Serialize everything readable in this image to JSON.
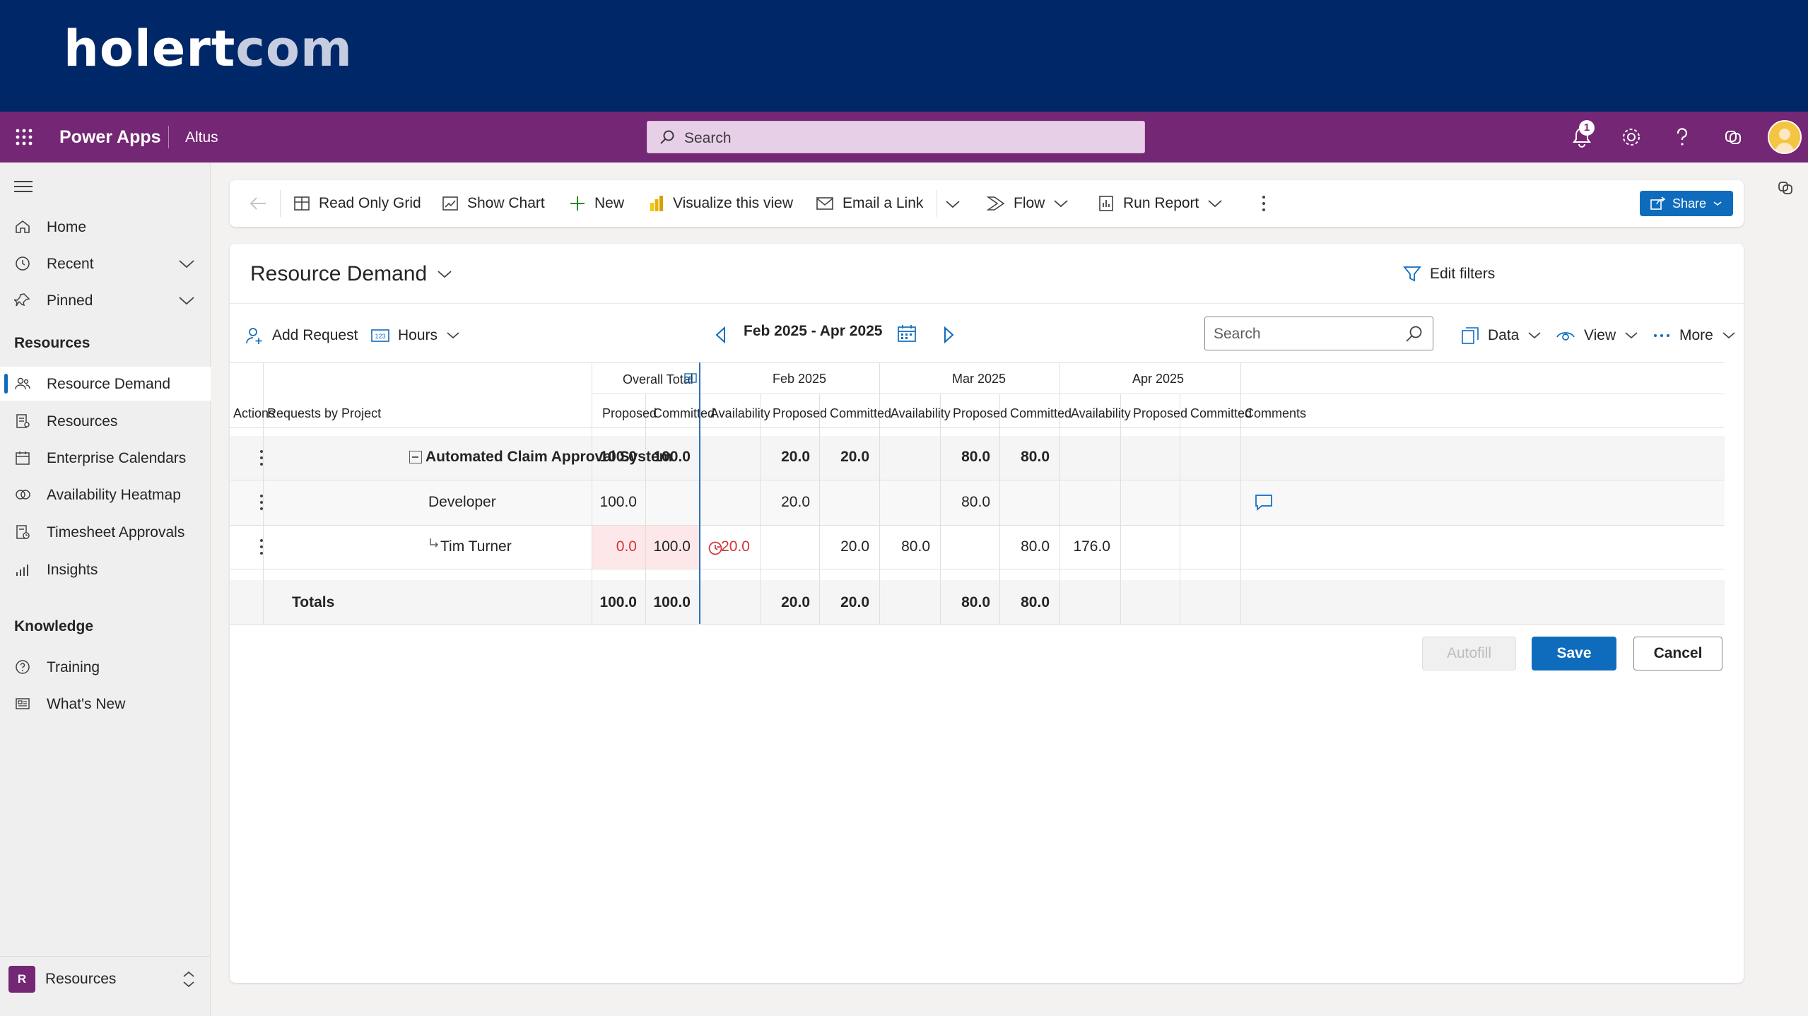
{
  "brand": {
    "logo_a": "holert",
    "logo_b": "com"
  },
  "appbar": {
    "app_name": "Power Apps",
    "environment": "Altus",
    "search_placeholder": "Search",
    "notification_count": "1",
    "accent": "#742774"
  },
  "sidebar": {
    "items_top": [
      {
        "label": "Home",
        "icon": "home-icon"
      },
      {
        "label": "Recent",
        "icon": "clock-icon"
      },
      {
        "label": "Pinned",
        "icon": "pin-icon"
      }
    ],
    "group_resources": "Resources",
    "items_resources": [
      {
        "label": "Resource Demand",
        "icon": "people-icon",
        "active": true
      },
      {
        "label": "Resources",
        "icon": "resource-list-icon"
      },
      {
        "label": "Enterprise Calendars",
        "icon": "calendar-icon"
      },
      {
        "label": "Availability Heatmap",
        "icon": "heatmap-icon"
      },
      {
        "label": "Timesheet Approvals",
        "icon": "timesheet-icon"
      },
      {
        "label": "Insights",
        "icon": "chart-icon"
      }
    ],
    "group_knowledge": "Knowledge",
    "items_knowledge": [
      {
        "label": "Training",
        "icon": "help-circle-icon"
      },
      {
        "label": "What's New",
        "icon": "news-icon"
      }
    ],
    "area_switcher": {
      "initial": "R",
      "label": "Resources"
    }
  },
  "commandbar": {
    "read_only_grid": "Read Only Grid",
    "show_chart": "Show Chart",
    "new": "New",
    "visualize": "Visualize this view",
    "email_link": "Email a Link",
    "flow": "Flow",
    "run_report": "Run Report",
    "share": "Share"
  },
  "view": {
    "title": "Resource Demand",
    "edit_filters": "Edit filters",
    "add_request": "Add Request",
    "unit": "Hours",
    "date_range": "Feb 2025 - Apr 2025",
    "search_placeholder": "Search",
    "data": "Data",
    "view": "View",
    "more": "More"
  },
  "grid": {
    "col_actions": "Actions",
    "col_requests": "Requests by Project",
    "overall_total": "Overall Total",
    "months": [
      "Feb 2025",
      "Mar 2025",
      "Apr 2025"
    ],
    "sub_proposed": "Proposed",
    "sub_committed": "Committed",
    "sub_availability": "Availability",
    "col_comments": "Comments",
    "rows": [
      {
        "name": "Automated Claim Approval System",
        "total_proposed": "100.0",
        "total_committed": "100.0",
        "feb": {
          "availability": "",
          "proposed": "20.0",
          "committed": "20.0"
        },
        "mar": {
          "availability": "",
          "proposed": "80.0",
          "committed": "80.0"
        },
        "apr": {
          "availability": "",
          "proposed": "",
          "committed": ""
        }
      },
      {
        "name": "Developer",
        "total_proposed": "100.0",
        "total_committed": "",
        "feb": {
          "availability": "",
          "proposed": "20.0",
          "committed": ""
        },
        "mar": {
          "availability": "",
          "proposed": "80.0",
          "committed": ""
        },
        "apr": {
          "availability": "",
          "proposed": "",
          "committed": ""
        }
      },
      {
        "name": "Tim Turner",
        "total_proposed": "0.0",
        "total_committed": "100.0",
        "feb": {
          "availability": "-20.0",
          "proposed": "",
          "committed": "20.0"
        },
        "mar": {
          "availability": "80.0",
          "proposed": "",
          "committed": "80.0"
        },
        "apr": {
          "availability": "176.0",
          "proposed": "",
          "committed": ""
        }
      }
    ],
    "totals": {
      "label": "Totals",
      "total_proposed": "100.0",
      "total_committed": "100.0",
      "feb": {
        "proposed": "20.0",
        "committed": "20.0"
      },
      "mar": {
        "proposed": "80.0",
        "committed": "80.0"
      }
    }
  },
  "buttons": {
    "autofill": "Autofill",
    "save": "Save",
    "cancel": "Cancel"
  }
}
